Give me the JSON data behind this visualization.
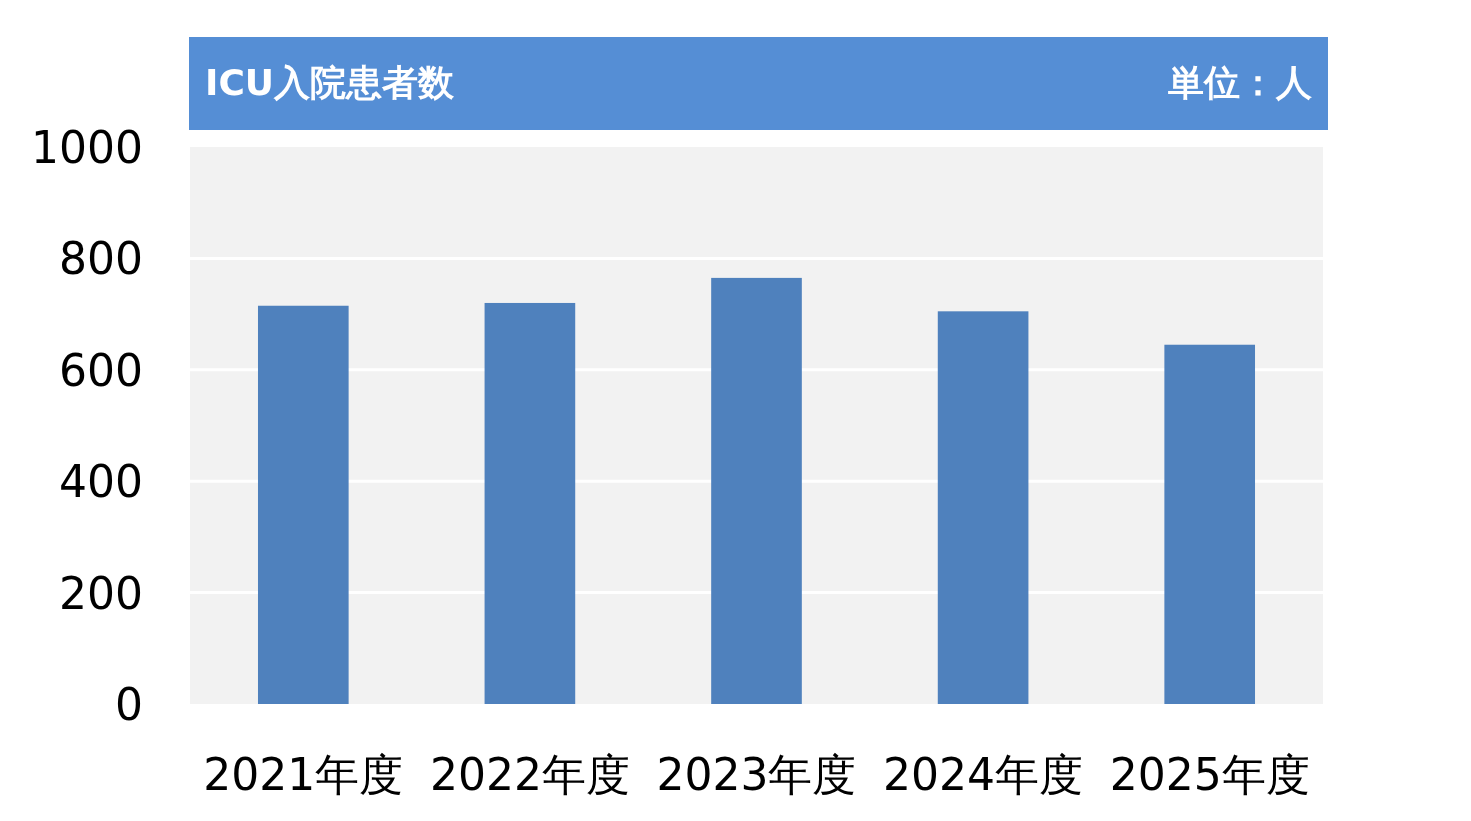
{
  "chart_data": {
    "type": "bar",
    "title": "ICU入院患者数",
    "annotations": [
      "単位：人"
    ],
    "categories": [
      "2021年度",
      "2022年度",
      "2023年度",
      "2024年度",
      "2025年度"
    ],
    "values": [
      715,
      720,
      765,
      705,
      645
    ],
    "color": "#4f81bd",
    "ylim": [
      0,
      1000
    ],
    "yticks": [
      0,
      200,
      400,
      600,
      800,
      1000
    ],
    "grid": "y"
  }
}
